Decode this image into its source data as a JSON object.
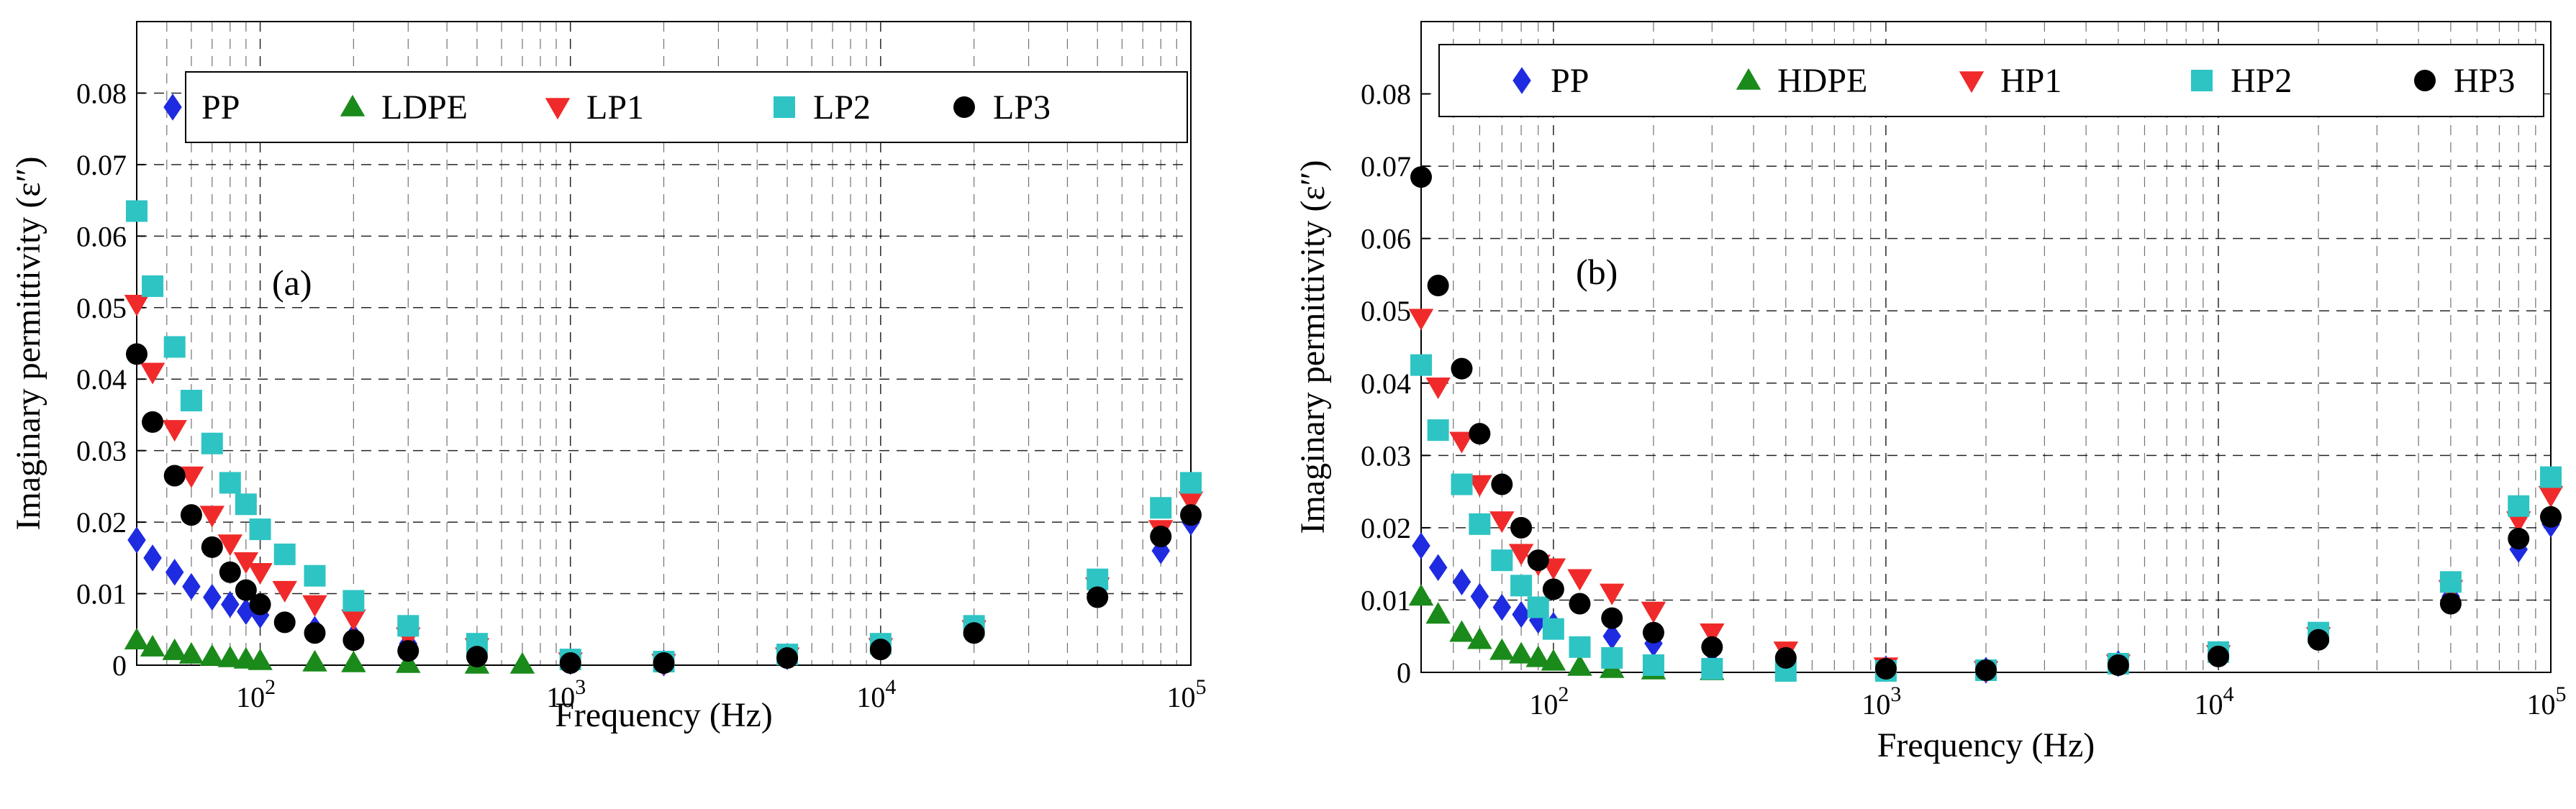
{
  "chart_data": [
    {
      "type": "scatter",
      "panel_label": "(a)",
      "xlabel": "Frequency  (Hz)",
      "ylabel": "Imaginary permittivity (ε″)",
      "xscale": "log",
      "xlim": [
        40,
        100000
      ],
      "ylim": [
        0,
        0.09
      ],
      "xtick_labels": [
        {
          "base": "10",
          "exp": "2"
        },
        {
          "base": "10",
          "exp": "3"
        },
        {
          "base": "10",
          "exp": "4"
        },
        {
          "base": "10",
          "exp": "5"
        }
      ],
      "ytick_values": [
        0,
        0.01,
        0.02,
        0.03,
        0.04,
        0.05,
        0.06,
        0.07,
        0.08
      ],
      "ytick_labels": [
        "0",
        "0.01",
        "0.02",
        "0.03",
        "0.04",
        "0.05",
        "0.06",
        "0.07",
        "0.08"
      ],
      "grid": true,
      "legend_position": "top",
      "series": [
        {
          "name": "PP",
          "marker": "diamond",
          "color": "#1f2be0",
          "x": [
            40,
            45,
            53,
            60,
            70,
            80,
            90,
            100,
            150,
            200,
            300,
            500,
            1000,
            2000,
            5000,
            10000,
            20000,
            50000,
            80000,
            100000
          ],
          "y": [
            0.0175,
            0.015,
            0.013,
            0.011,
            0.0095,
            0.0085,
            0.0075,
            0.007,
            0.005,
            0.004,
            0.003,
            0.0018,
            0.0005,
            0.0003,
            0.0012,
            0.0025,
            0.005,
            0.0105,
            0.016,
            0.02
          ]
        },
        {
          "name": "LDPE",
          "marker": "triangle-up",
          "color": "#1a8a1a",
          "x": [
            40,
            45,
            53,
            60,
            70,
            80,
            90,
            100,
            150,
            200,
            300,
            500,
            700
          ],
          "y": [
            0.0035,
            0.0025,
            0.002,
            0.0015,
            0.0012,
            0.001,
            0.0008,
            0.0006,
            0.0004,
            0.0003,
            0.0002,
            0.0001,
            0.0001
          ]
        },
        {
          "name": "LP1",
          "marker": "triangle-down",
          "color": "#f02a2a",
          "x": [
            40,
            45,
            53,
            60,
            70,
            80,
            90,
            100,
            120,
            150,
            200,
            300,
            500,
            1000,
            2000,
            5000,
            10000,
            20000,
            50000,
            80000,
            100000
          ],
          "y": [
            0.0505,
            0.041,
            0.033,
            0.0265,
            0.021,
            0.017,
            0.0145,
            0.013,
            0.0105,
            0.0085,
            0.0065,
            0.004,
            0.0025,
            0.0005,
            0.0003,
            0.0012,
            0.0025,
            0.005,
            0.011,
            0.019,
            0.023
          ]
        },
        {
          "name": "LP2",
          "marker": "square",
          "color": "#2ec4c4",
          "x": [
            40,
            45,
            53,
            60,
            70,
            80,
            90,
            100,
            120,
            150,
            200,
            300,
            500,
            1000,
            2000,
            5000,
            10000,
            20000,
            50000,
            80000,
            100000
          ],
          "y": [
            0.0635,
            0.053,
            0.0445,
            0.037,
            0.031,
            0.0255,
            0.0225,
            0.019,
            0.0155,
            0.0125,
            0.009,
            0.0055,
            0.003,
            0.0008,
            0.0005,
            0.0015,
            0.003,
            0.0055,
            0.012,
            0.022,
            0.0255
          ]
        },
        {
          "name": "LP3",
          "marker": "circle",
          "color": "#000000",
          "x": [
            40,
            45,
            53,
            60,
            70,
            80,
            90,
            100,
            120,
            150,
            200,
            300,
            500,
            1000,
            2000,
            5000,
            10000,
            20000,
            50000,
            80000,
            100000
          ],
          "y": [
            0.0435,
            0.034,
            0.0265,
            0.021,
            0.0165,
            0.013,
            0.0105,
            0.0085,
            0.006,
            0.0045,
            0.0035,
            0.002,
            0.0012,
            0.0003,
            0.0003,
            0.001,
            0.0022,
            0.0045,
            0.0095,
            0.018,
            0.021
          ]
        }
      ]
    },
    {
      "type": "scatter",
      "panel_label": "(b)",
      "xlabel": "Frequency  (Hz)",
      "ylabel": "Imaginary permittivity (ε″)",
      "xscale": "log",
      "xlim": [
        40,
        100000
      ],
      "ylim": [
        0,
        0.09
      ],
      "xtick_labels": [
        {
          "base": "10",
          "exp": "2"
        },
        {
          "base": "10",
          "exp": "3"
        },
        {
          "base": "10",
          "exp": "4"
        },
        {
          "base": "10",
          "exp": "5"
        }
      ],
      "ytick_values": [
        0,
        0.01,
        0.02,
        0.03,
        0.04,
        0.05,
        0.06,
        0.07,
        0.08
      ],
      "ytick_labels": [
        "0",
        "0.01",
        "0.02",
        "0.03",
        "0.04",
        "0.05",
        "0.06",
        "0.07",
        "0.08"
      ],
      "grid": true,
      "legend_position": "top",
      "series": [
        {
          "name": "PP",
          "marker": "diamond",
          "color": "#1f2be0",
          "x": [
            40,
            45,
            53,
            60,
            70,
            80,
            90,
            100,
            150,
            200,
            300,
            500,
            1000,
            2000,
            5000,
            10000,
            20000,
            50000,
            80000,
            100000
          ],
          "y": [
            0.0175,
            0.0145,
            0.0125,
            0.0105,
            0.009,
            0.008,
            0.0072,
            0.0065,
            0.005,
            0.004,
            0.003,
            0.0018,
            0.0005,
            0.0003,
            0.0012,
            0.0025,
            0.005,
            0.0105,
            0.017,
            0.0205
          ]
        },
        {
          "name": "HDPE",
          "marker": "triangle-up",
          "color": "#1a8a1a",
          "x": [
            40,
            45,
            53,
            60,
            70,
            80,
            90,
            100,
            120,
            150,
            200,
            300
          ],
          "y": [
            0.0105,
            0.008,
            0.0055,
            0.0045,
            0.003,
            0.0025,
            0.002,
            0.0015,
            0.0008,
            0.0005,
            0.0003,
            0.0002
          ]
        },
        {
          "name": "HP1",
          "marker": "triangle-down",
          "color": "#f02a2a",
          "x": [
            40,
            45,
            53,
            60,
            70,
            80,
            90,
            100,
            120,
            150,
            200,
            300,
            500,
            1000,
            2000,
            5000,
            10000,
            20000,
            50000,
            80000,
            100000
          ],
          "y": [
            0.049,
            0.0395,
            0.032,
            0.026,
            0.021,
            0.0165,
            0.015,
            0.0145,
            0.013,
            0.011,
            0.0085,
            0.0055,
            0.003,
            0.0008,
            0.0003,
            0.0012,
            0.0025,
            0.005,
            0.0115,
            0.021,
            0.0245
          ]
        },
        {
          "name": "HP2",
          "marker": "square",
          "color": "#2ec4c4",
          "x": [
            40,
            45,
            53,
            60,
            70,
            80,
            90,
            100,
            120,
            150,
            200,
            300,
            500,
            1000,
            2000,
            5000,
            10000,
            20000,
            50000,
            80000,
            100000
          ],
          "y": [
            0.0425,
            0.0335,
            0.026,
            0.0205,
            0.0155,
            0.012,
            0.009,
            0.006,
            0.0035,
            0.002,
            0.001,
            0.0005,
            0.0002,
            0.0002,
            0.0003,
            0.0012,
            0.0028,
            0.0055,
            0.0125,
            0.023,
            0.027
          ]
        },
        {
          "name": "HP3",
          "marker": "circle",
          "color": "#000000",
          "x": [
            40,
            45,
            53,
            60,
            70,
            80,
            90,
            100,
            120,
            150,
            200,
            300,
            500,
            1000,
            2000,
            5000,
            10000,
            20000,
            50000,
            80000,
            100000
          ],
          "y": [
            0.0685,
            0.0535,
            0.042,
            0.033,
            0.026,
            0.02,
            0.0155,
            0.0115,
            0.0095,
            0.0075,
            0.0055,
            0.0035,
            0.002,
            0.0005,
            0.0003,
            0.001,
            0.0022,
            0.0045,
            0.0095,
            0.0185,
            0.0215
          ]
        }
      ]
    }
  ]
}
